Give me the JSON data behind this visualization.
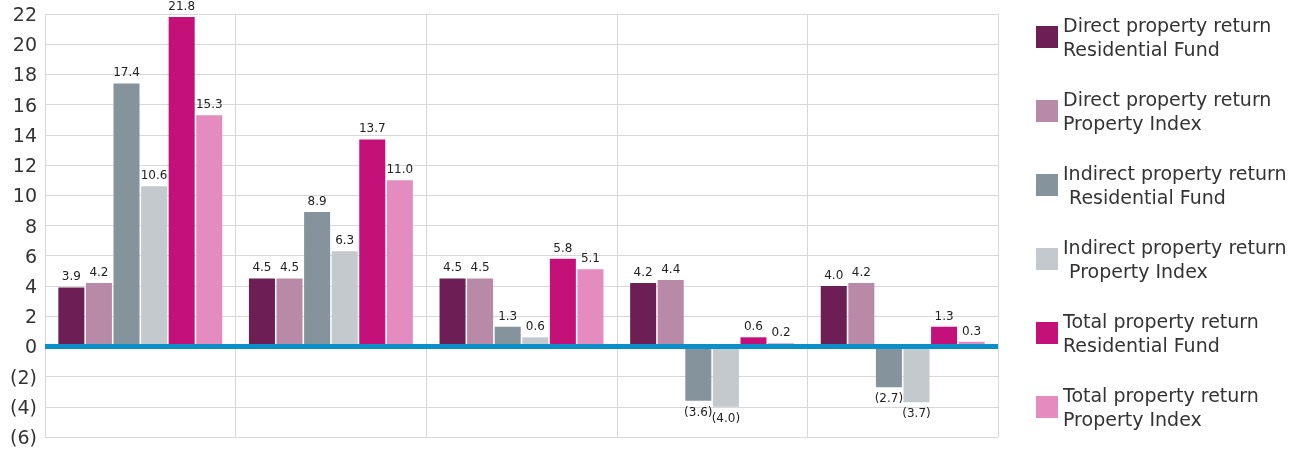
{
  "chart_data": {
    "type": "bar",
    "categories": [
      null,
      null,
      null,
      null,
      null
    ],
    "series": [
      {
        "name": "Direct property return Residential Fund",
        "color": "#6d1f55",
        "values": [
          3.9,
          4.5,
          4.5,
          4.2,
          4.0
        ],
        "value_labels": [
          "3.9",
          "4.5",
          "4.5",
          "4.2",
          "4.0"
        ]
      },
      {
        "name": "Direct property return Property Index",
        "color": "#b98aa8",
        "values": [
          4.2,
          4.5,
          4.5,
          4.4,
          4.2
        ],
        "value_labels": [
          "4.2",
          "4.5",
          "4.5",
          "4.4",
          "4.2"
        ]
      },
      {
        "name": "Indirect property return Residential Fund",
        "color": "#84939c",
        "values": [
          17.4,
          8.9,
          1.3,
          -3.6,
          -2.7
        ],
        "value_labels": [
          "17.4",
          "8.9",
          "1.3",
          "(3.6)",
          "(2.7)"
        ]
      },
      {
        "name": "Indirect property return Property Index",
        "color": "#c3c9cc",
        "values": [
          10.6,
          6.3,
          0.6,
          -4.0,
          -3.7
        ],
        "value_labels": [
          "10.6",
          "6.3",
          "0.6",
          "(4.0)",
          "(3.7)"
        ]
      },
      {
        "name": "Total property return Residential Fund",
        "color": "#c4117a",
        "values": [
          21.8,
          13.7,
          5.8,
          0.6,
          1.3
        ],
        "value_labels": [
          "21.8",
          "13.7",
          "5.8",
          "0.6",
          "1.3"
        ]
      },
      {
        "name": "Total property return Property Index",
        "color": "#e48cc0",
        "values": [
          15.3,
          11.0,
          5.1,
          0.2,
          0.3
        ],
        "value_labels": [
          "15.3",
          "11.0",
          "5.1",
          "0.2",
          "0.3"
        ]
      }
    ],
    "ylim": [
      -6,
      22
    ],
    "yticks": [
      {
        "value": -6,
        "label": "(6)"
      },
      {
        "value": -4,
        "label": "(4)"
      },
      {
        "value": -2,
        "label": "(2)"
      },
      0,
      2,
      4,
      6,
      8,
      10,
      12,
      14,
      16,
      18,
      20,
      22
    ],
    "ref_lines": [
      {
        "axis": "y",
        "value": 0,
        "color": "#0a8fc8"
      }
    ],
    "grid": true,
    "legend": "right"
  }
}
